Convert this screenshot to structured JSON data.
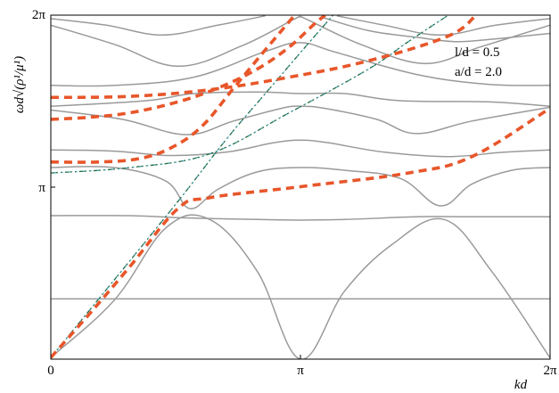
{
  "chart_data": {
    "type": "line",
    "title": "",
    "xlabel": "kd",
    "ylabel": "ωd√(ρ¹/μ¹)",
    "xlim": [
      0,
      6.2832
    ],
    "ylim": [
      0,
      6.2832
    ],
    "x_ticks": [
      {
        "value": 0,
        "label": "0"
      },
      {
        "value": 3.1416,
        "label": "π"
      },
      {
        "value": 6.2832,
        "label": "2π"
      }
    ],
    "y_ticks": [
      {
        "value": 3.1416,
        "label": "π"
      },
      {
        "value": 6.2832,
        "label": "2π"
      }
    ],
    "grid": false,
    "legend": "none",
    "annotations": [
      "l/d = 0.5",
      "a/d = 2.0"
    ],
    "colors": {
      "bands": "#9a9a9a",
      "dashed_red": "#e8562a",
      "dashdot_green": "#1f6b46",
      "dashdot_teal": "#56b4c8"
    },
    "series": [
      {
        "style": "solid-gray",
        "points": [
          [
            0,
            1.1
          ],
          [
            3.05,
            1.1
          ],
          [
            3.23,
            1.1
          ],
          [
            6.28,
            1.1
          ]
        ]
      },
      {
        "style": "solid-gray",
        "points": [
          [
            0,
            0.03
          ],
          [
            0.8,
            1.08
          ],
          [
            1.45,
            2.4
          ],
          [
            2.0,
            2.55
          ],
          [
            2.6,
            1.6
          ],
          [
            3.1416,
            0.0
          ],
          [
            3.7,
            1.25
          ],
          [
            4.3,
            2.1
          ],
          [
            4.95,
            2.55
          ],
          [
            5.55,
            1.6
          ],
          [
            6.28,
            0.03
          ]
        ]
      },
      {
        "style": "solid-gray",
        "points": [
          [
            0,
            2.62
          ],
          [
            1.0,
            2.62
          ],
          [
            1.7,
            2.58
          ],
          [
            2.6,
            2.55
          ],
          [
            3.1416,
            2.54
          ],
          [
            3.7,
            2.55
          ],
          [
            4.6,
            2.6
          ],
          [
            5.3,
            2.6
          ],
          [
            6.28,
            2.6
          ]
        ]
      },
      {
        "style": "solid-gray",
        "points": [
          [
            0,
            3.5
          ],
          [
            0.8,
            3.5
          ],
          [
            1.45,
            3.25
          ],
          [
            1.75,
            2.75
          ],
          [
            2.1,
            3.1
          ],
          [
            2.6,
            3.42
          ],
          [
            3.1416,
            3.5
          ],
          [
            3.7,
            3.45
          ],
          [
            4.4,
            3.3
          ],
          [
            4.9,
            2.8
          ],
          [
            5.3,
            3.2
          ],
          [
            5.8,
            3.45
          ],
          [
            6.28,
            3.5
          ]
        ]
      },
      {
        "style": "solid-gray",
        "points": [
          [
            0,
            3.82
          ],
          [
            0.8,
            3.8
          ],
          [
            1.5,
            3.72
          ],
          [
            2.2,
            3.78
          ],
          [
            2.8,
            3.95
          ],
          [
            3.1416,
            4.0
          ],
          [
            3.5,
            3.95
          ],
          [
            4.2,
            3.78
          ],
          [
            5.0,
            3.7
          ],
          [
            5.7,
            3.78
          ],
          [
            6.28,
            3.82
          ]
        ]
      },
      {
        "style": "solid-gray",
        "points": [
          [
            0,
            4.55
          ],
          [
            0.9,
            4.38
          ],
          [
            1.7,
            4.1
          ],
          [
            2.3,
            4.35
          ],
          [
            2.9,
            4.58
          ],
          [
            3.1416,
            4.62
          ],
          [
            3.45,
            4.58
          ],
          [
            4.1,
            4.38
          ],
          [
            4.6,
            4.12
          ],
          [
            5.3,
            4.35
          ],
          [
            6.28,
            4.6
          ]
        ]
      },
      {
        "style": "solid-gray",
        "points": [
          [
            0,
            4.62
          ],
          [
            1.2,
            4.72
          ],
          [
            1.8,
            4.85
          ],
          [
            2.6,
            4.88
          ],
          [
            3.1416,
            4.85
          ],
          [
            3.7,
            4.85
          ],
          [
            4.4,
            4.72
          ],
          [
            5.5,
            4.7
          ],
          [
            6.28,
            4.62
          ]
        ]
      },
      {
        "style": "solid-gray",
        "points": [
          [
            0,
            5.0
          ],
          [
            0.8,
            5.0
          ],
          [
            1.8,
            5.15
          ],
          [
            2.7,
            5.62
          ],
          [
            3.1416,
            5.78
          ],
          [
            3.6,
            5.6
          ],
          [
            4.6,
            5.2
          ],
          [
            5.5,
            5.02
          ],
          [
            6.28,
            5.0
          ]
        ]
      },
      {
        "style": "solid-gray",
        "points": [
          [
            0,
            6.1
          ],
          [
            0.8,
            5.75
          ],
          [
            1.6,
            5.35
          ],
          [
            2.4,
            5.72
          ],
          [
            3.05,
            6.2
          ],
          [
            3.1416,
            6.25
          ],
          [
            3.23,
            6.2
          ],
          [
            3.9,
            5.75
          ],
          [
            4.7,
            5.4
          ],
          [
            5.4,
            5.7
          ],
          [
            6.28,
            6.1
          ]
        ]
      },
      {
        "style": "solid-gray",
        "points": [
          [
            0,
            6.22
          ],
          [
            0.7,
            6.1
          ],
          [
            1.4,
            5.92
          ],
          [
            2.1,
            6.1
          ],
          [
            2.7,
            6.27
          ]
        ]
      },
      {
        "style": "solid-gray",
        "points": [
          [
            3.6,
            6.27
          ],
          [
            4.2,
            6.1
          ],
          [
            4.9,
            5.92
          ],
          [
            5.6,
            6.1
          ],
          [
            6.28,
            6.22
          ]
        ]
      },
      {
        "style": "solid-gray",
        "points": [
          [
            3.4,
            6.25
          ],
          [
            4.0,
            6.0
          ],
          [
            4.6,
            5.88
          ],
          [
            5.1,
            5.8
          ],
          [
            5.6,
            5.85
          ],
          [
            6.28,
            5.95
          ]
        ]
      },
      {
        "style": "dashed-red",
        "points": [
          [
            0,
            0.03
          ],
          [
            0.5,
            0.85
          ],
          [
            1.0,
            1.7
          ],
          [
            1.6,
            2.75
          ],
          [
            2.0,
            2.95
          ],
          [
            3.1416,
            3.15
          ],
          [
            4.5,
            3.4
          ],
          [
            5.3,
            3.7
          ],
          [
            6.28,
            4.58
          ]
        ]
      },
      {
        "style": "dashed-red",
        "points": [
          [
            0,
            3.6
          ],
          [
            0.6,
            3.6
          ],
          [
            1.1,
            3.66
          ],
          [
            1.5,
            3.85
          ],
          [
            1.9,
            4.25
          ],
          [
            2.3,
            4.95
          ],
          [
            2.7,
            5.65
          ],
          [
            3.05,
            6.25
          ]
        ]
      },
      {
        "style": "dashed-red",
        "points": [
          [
            0,
            4.38
          ],
          [
            0.5,
            4.42
          ],
          [
            1.0,
            4.5
          ],
          [
            1.6,
            4.7
          ],
          [
            2.1,
            4.95
          ],
          [
            2.6,
            5.3
          ],
          [
            3.0,
            5.7
          ],
          [
            3.3,
            6.1
          ],
          [
            3.45,
            6.28
          ]
        ]
      },
      {
        "style": "dashed-red",
        "points": [
          [
            0,
            4.78
          ],
          [
            1.0,
            4.8
          ],
          [
            2.0,
            4.92
          ],
          [
            3.0,
            5.15
          ],
          [
            4.0,
            5.45
          ],
          [
            5.0,
            5.9
          ],
          [
            5.35,
            6.28
          ]
        ]
      },
      {
        "style": "dashdot-green",
        "points": [
          [
            0,
            0.03
          ],
          [
            1.5,
            2.7
          ],
          [
            2.2,
            4.0
          ],
          [
            2.7,
            4.85
          ],
          [
            3.1416,
            5.6
          ],
          [
            3.55,
            6.28
          ]
        ]
      },
      {
        "style": "dashdot-green",
        "points": [
          [
            0,
            3.4
          ],
          [
            1.0,
            3.5
          ],
          [
            2.0,
            3.75
          ],
          [
            3.0,
            4.5
          ],
          [
            4.0,
            5.3
          ],
          [
            4.5,
            5.8
          ],
          [
            5.0,
            6.28
          ]
        ]
      }
    ]
  }
}
